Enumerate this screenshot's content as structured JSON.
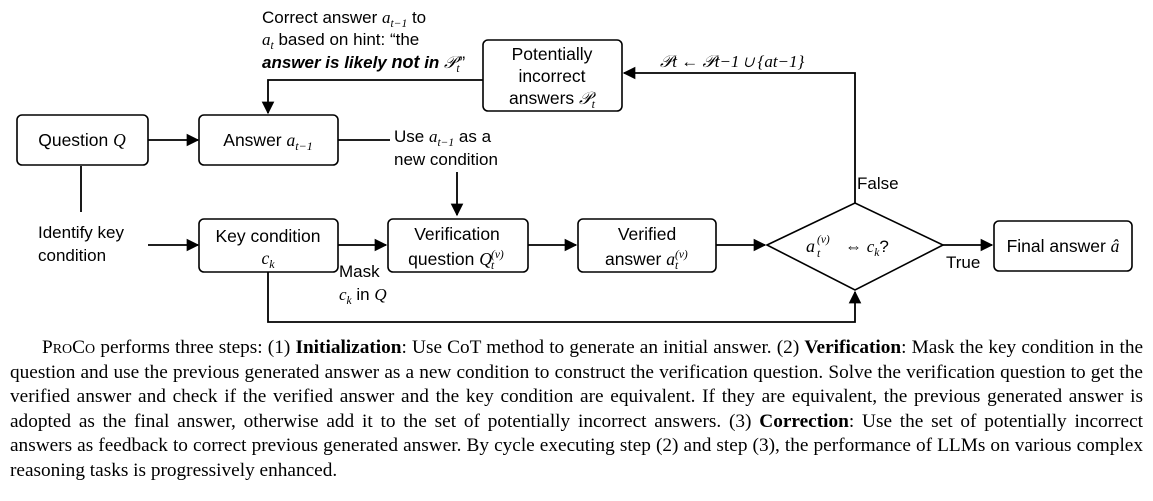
{
  "diagram": {
    "question": "Question",
    "question_var": "Q",
    "answer": "Answer",
    "answer_var": "a",
    "answer_sub": "t−1",
    "potentially": [
      "Potentially",
      "incorrect"
    ],
    "potentially_answers": "answers",
    "potentially_var": "𝒫",
    "potentially_sub": "t",
    "correct_line1": "Correct answer",
    "correct_line1_var": "a",
    "correct_line1_sub": "t−1",
    "correct_line1_tail": "to",
    "correct_line2_var": "a",
    "correct_line2_sub": "t",
    "correct_line2": "based on hint: “the",
    "correct_line3_a": "answer is likely",
    "correct_line3_b": "not",
    "correct_line3_c": "in",
    "correct_line3_var": "𝒫",
    "correct_line3_sub": "t",
    "correct_line3_end": "”",
    "update_rule": "𝒫t ← 𝒫t−1 ∪ {at−1}",
    "use_line1": "Use",
    "use_var": "a",
    "use_sub": "t−1",
    "use_tail": "as a",
    "use_line2": "new condition",
    "identify": [
      "Identify key",
      "condition"
    ],
    "key_condition": "Key condition",
    "key_var": "c",
    "key_sub": "k",
    "mask": "Mask",
    "mask_var": "c",
    "mask_sub": "k",
    "mask_tail": "in",
    "mask_q": "Q",
    "verification": [
      "Verification",
      "question"
    ],
    "verification_var": "Q",
    "verified": [
      "Verified",
      "answer"
    ],
    "verified_var": "a",
    "decision_var": "a",
    "decision_mid": "⇔",
    "decision_c": "c",
    "decision_sub": "k",
    "decision_q": "?",
    "false_label": "False",
    "true_label": "True",
    "final": "Final answer",
    "final_var": "â"
  },
  "caption": {
    "name": "ProCo",
    "intro": "performs three steps: (1)",
    "init_label": "Initialization",
    "init_text": ": Use CoT method to generate an initial answer. (2)",
    "verif_label": "Verification",
    "verif_text": ": Mask the key condition in the question and use the previous generated answer as a new condition to construct the verification question. Solve the verification question to get the verified answer and check if the verified answer and the key condition are equivalent. If they are equivalent, the previous generated answer is adopted as the final answer, otherwise add it to the set of potentially incorrect answers. (3)",
    "corr_label": "Correction",
    "corr_text": ": Use the set of potentially incorrect answers as feedback to correct previous generated answer. By cycle executing step (2) and step (3), the performance of LLMs on various complex reasoning tasks is progressively enhanced."
  }
}
